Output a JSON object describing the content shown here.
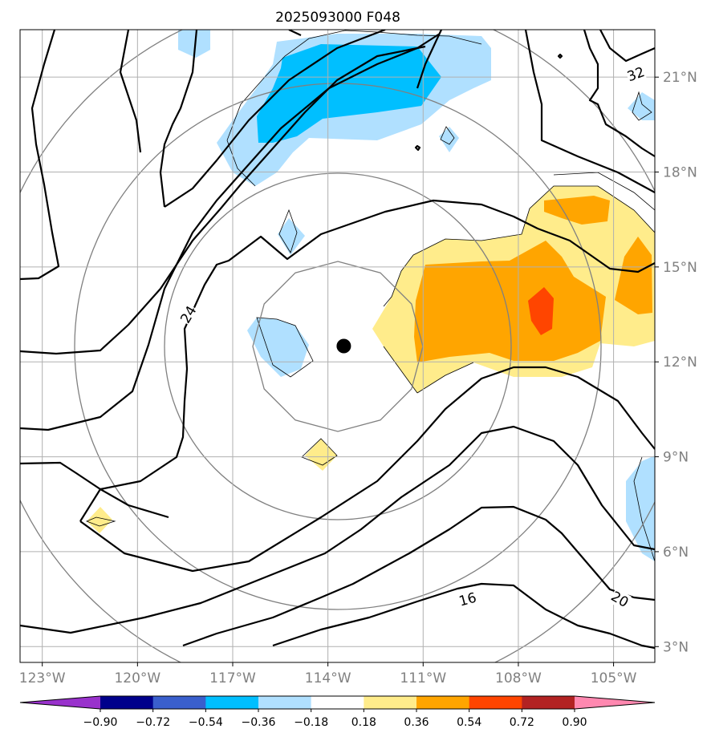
{
  "title": "2025093000 F048",
  "map": {
    "lon_range": [
      -123.7,
      -103.7
    ],
    "lat_range": [
      2.5,
      22.5
    ],
    "lon_ticks": [
      {
        "value": -123,
        "label": "123°W"
      },
      {
        "value": -120,
        "label": "120°W"
      },
      {
        "value": -117,
        "label": "117°W"
      },
      {
        "value": -114,
        "label": "114°W"
      },
      {
        "value": -111,
        "label": "111°W"
      },
      {
        "value": -108,
        "label": "108°W"
      },
      {
        "value": -105,
        "label": "105°W"
      }
    ],
    "lat_ticks": [
      {
        "value": 3,
        "label": "3°N"
      },
      {
        "value": 6,
        "label": "6°N"
      },
      {
        "value": 9,
        "label": "9°N"
      },
      {
        "value": 12,
        "label": "12°N"
      },
      {
        "value": 15,
        "label": "15°N"
      },
      {
        "value": 18,
        "label": "18°N"
      },
      {
        "value": 21,
        "label": "21°N"
      }
    ],
    "storm_center": {
      "lon": -113.5,
      "lat": 12.5
    },
    "contour_labels": [
      {
        "text": "24",
        "lon": -118.4,
        "lat": 13.5,
        "rotate": -60
      },
      {
        "text": "32",
        "lon": -104.3,
        "lat": 21.1,
        "rotate": -20
      },
      {
        "text": "16",
        "lon": -109.6,
        "lat": 4.5,
        "rotate": -15
      },
      {
        "text": "20",
        "lon": -104.8,
        "lat": 4.5,
        "rotate": 30
      }
    ]
  },
  "colorbar": {
    "colors": [
      "#9932cc",
      "#00008b",
      "#3a5fcd",
      "#00bfff",
      "#b0e0ff",
      "#ffffff",
      "#ffec8b",
      "#ffa500",
      "#ff4500",
      "#b22222",
      "#ff88b0"
    ],
    "tick_labels": [
      "−0.90",
      "−0.72",
      "−0.54",
      "−0.36",
      "−0.18",
      "0.18",
      "0.36",
      "0.54",
      "0.72",
      "0.90"
    ]
  }
}
